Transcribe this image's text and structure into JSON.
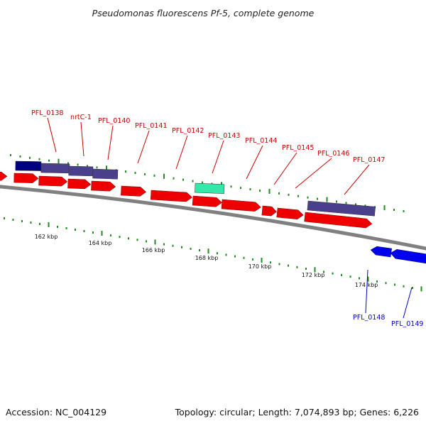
{
  "title": "Pseudomonas fluorescens Pf-5, complete genome",
  "footer": {
    "accession": "Accession: NC_004129",
    "summary": "Topology: circular; Length: 7,074,893 bp; Genes: 6,226"
  },
  "colors": {
    "background": "#ffffff",
    "backbone": "#808080",
    "cds_forward": "#ee0000",
    "cds_reverse": "#0000ee",
    "cog_navy": "#000080",
    "cog_purple": "#4a3f8c",
    "cog_teal": "#33e8a8",
    "ticks": "#228b22",
    "forward_label": "#cc0000",
    "reverse_label": "#0000cc"
  },
  "scale_labels": [
    "162 kbp",
    "164 kbp",
    "166 kbp",
    "168 kbp",
    "170 kbp",
    "172 kbp",
    "174 kbp"
  ],
  "forward_gene_labels": [
    "PFL_0138",
    "nrtC-1",
    "PFL_0140",
    "PFL_0141",
    "PFL_0142",
    "PFL_0143",
    "PFL_0144",
    "PFL_0145",
    "PFL_0146",
    "PFL_0147"
  ],
  "reverse_gene_labels": [
    "PFL_0148",
    "PFL_0149"
  ],
  "legend_note": ""
}
